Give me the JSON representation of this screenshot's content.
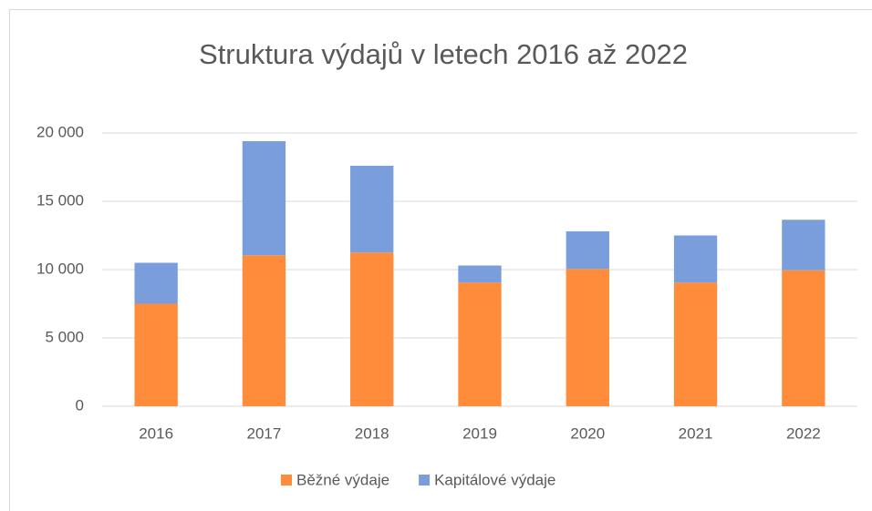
{
  "chart_data": {
    "type": "stacked_bar",
    "title": "Struktura výdajů v letech 2016 až 2022",
    "categories": [
      "2016",
      "2017",
      "2018",
      "2019",
      "2020",
      "2021",
      "2022"
    ],
    "series": [
      {
        "name": "Běžné výdaje",
        "color": "#ff8c3a",
        "values": [
          7500,
          11050,
          11250,
          9050,
          10050,
          9050,
          9950
        ]
      },
      {
        "name": "Kapitálové výdaje",
        "color": "#7a9edb",
        "values": [
          3000,
          8350,
          6350,
          1250,
          2750,
          3450,
          3700
        ]
      }
    ],
    "ylim": [
      0,
      20000
    ],
    "yticks": [
      0,
      {
        "value": 5000,
        "label": "5 000"
      },
      {
        "value": 10000,
        "label": "10 000"
      },
      {
        "value": 15000,
        "label": "15 000"
      },
      {
        "value": 20000,
        "label": "20 000"
      }
    ],
    "grid": true,
    "legend": "bottom"
  }
}
